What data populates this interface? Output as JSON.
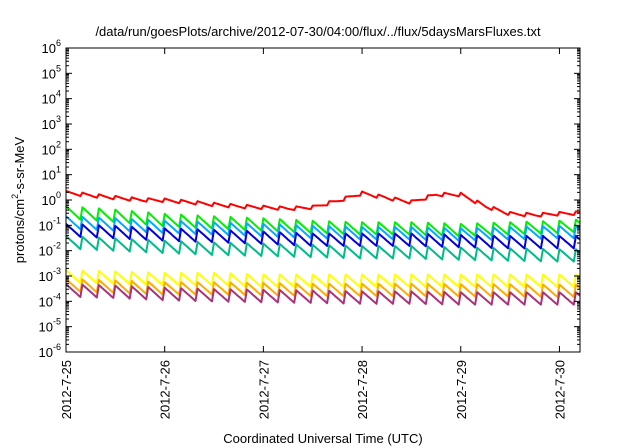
{
  "chart_data": {
    "type": "line",
    "title": "/data/run/goesPlots/archive/2012-07-30/04:00/flux/../flux/5daysMarsFluxes.txt",
    "xlabel": "Coordinated Universal Time (UTC)",
    "ylabel": {
      "base": "protons/cm",
      "sup": "2",
      "rest": "-s-sr-MeV"
    },
    "x_scale": "time",
    "y_scale": "log",
    "xlim": [
      "2012-07-25T00:00",
      "2012-07-30T05:00"
    ],
    "ylim": [
      1e-06,
      1000000.0
    ],
    "x_ticks": [
      {
        "date": "2012-07-25T00:00",
        "label": "2012-7-25"
      },
      {
        "date": "2012-07-26T00:00",
        "label": "2012-7-26"
      },
      {
        "date": "2012-07-27T00:00",
        "label": "2012-7-27"
      },
      {
        "date": "2012-07-28T00:00",
        "label": "2012-7-28"
      },
      {
        "date": "2012-07-29T00:00",
        "label": "2012-7-29"
      },
      {
        "date": "2012-07-30T00:00",
        "label": "2012-7-30"
      }
    ],
    "y_ticks": [
      {
        "value": 1e-06,
        "base": "10",
        "exp": "-6"
      },
      {
        "value": 1e-05,
        "base": "10",
        "exp": "-5"
      },
      {
        "value": 0.0001,
        "base": "10",
        "exp": "-4"
      },
      {
        "value": 0.001,
        "base": "10",
        "exp": "-3"
      },
      {
        "value": 0.01,
        "base": "10",
        "exp": "-2"
      },
      {
        "value": 0.1,
        "base": "10",
        "exp": "-1"
      },
      {
        "value": 1,
        "base": "10",
        "exp": "0"
      },
      {
        "value": 10.0,
        "base": "10",
        "exp": "1"
      },
      {
        "value": 100.0,
        "base": "10",
        "exp": "2"
      },
      {
        "value": 1000.0,
        "base": "10",
        "exp": "3"
      },
      {
        "value": 10000.0,
        "base": "10",
        "exp": "4"
      },
      {
        "value": 100000.0,
        "base": "10",
        "exp": "5"
      },
      {
        "value": 1000000.0,
        "base": "10",
        "exp": "6"
      }
    ],
    "grid": false,
    "legend": "none",
    "series": [
      {
        "color": "#ff0000",
        "x": [
          "2012-07-25T00:00",
          "2012-07-25T06:00",
          "2012-07-25T12:00",
          "2012-07-25T18:00",
          "2012-07-26T00:00",
          "2012-07-26T06:00",
          "2012-07-26T12:00",
          "2012-07-26T18:00",
          "2012-07-27T00:00",
          "2012-07-27T06:00",
          "2012-07-27T12:00",
          "2012-07-27T18:00",
          "2012-07-28T00:00",
          "2012-07-28T06:00",
          "2012-07-28T12:00",
          "2012-07-28T18:00",
          "2012-07-29T00:00",
          "2012-07-29T06:00",
          "2012-07-29T12:00",
          "2012-07-29T18:00",
          "2012-07-30T00:00",
          "2012-07-30T05:00"
        ],
        "y": [
          1.9,
          1.5,
          1.2,
          1.0,
          0.95,
          0.8,
          0.65,
          0.55,
          0.5,
          0.45,
          0.5,
          0.9,
          1.8,
          1.2,
          0.8,
          1.6,
          1.6,
          0.55,
          0.28,
          0.25,
          0.28,
          0.3
        ]
      },
      {
        "color": "#00ee00",
        "x": [
          "2012-07-25T00:00",
          "2012-07-25T12:00",
          "2012-07-26T00:00",
          "2012-07-26T12:00",
          "2012-07-27T00:00",
          "2012-07-27T12:00",
          "2012-07-28T00:00",
          "2012-07-28T12:00",
          "2012-07-29T00:00",
          "2012-07-29T12:00",
          "2012-07-30T00:00",
          "2012-07-30T05:00"
        ],
        "y": [
          0.3,
          0.22,
          0.15,
          0.12,
          0.1,
          0.08,
          0.07,
          0.07,
          0.06,
          0.07,
          0.08,
          0.09
        ]
      },
      {
        "color": "#00aaff",
        "x": [
          "2012-07-25T00:00",
          "2012-07-25T12:00",
          "2012-07-26T00:00",
          "2012-07-26T12:00",
          "2012-07-27T00:00",
          "2012-07-27T12:00",
          "2012-07-28T00:00",
          "2012-07-28T12:00",
          "2012-07-29T00:00",
          "2012-07-29T12:00",
          "2012-07-30T00:00",
          "2012-07-30T05:00"
        ],
        "y": [
          0.12,
          0.1,
          0.08,
          0.07,
          0.06,
          0.05,
          0.045,
          0.045,
          0.04,
          0.045,
          0.05,
          0.05
        ]
      },
      {
        "color": "#0000dd",
        "x": [
          "2012-07-25T00:00",
          "2012-07-25T12:00",
          "2012-07-26T00:00",
          "2012-07-26T12:00",
          "2012-07-27T00:00",
          "2012-07-27T12:00",
          "2012-07-28T00:00",
          "2012-07-28T12:00",
          "2012-07-29T00:00",
          "2012-07-29T12:00",
          "2012-07-30T00:00",
          "2012-07-30T05:00"
        ],
        "y": [
          0.06,
          0.05,
          0.04,
          0.035,
          0.03,
          0.025,
          0.025,
          0.025,
          0.022,
          0.02,
          0.02,
          0.02
        ]
      },
      {
        "color": "#00bb88",
        "x": [
          "2012-07-25T00:00",
          "2012-07-25T12:00",
          "2012-07-26T00:00",
          "2012-07-26T12:00",
          "2012-07-27T00:00",
          "2012-07-27T12:00",
          "2012-07-28T00:00",
          "2012-07-28T12:00",
          "2012-07-29T00:00",
          "2012-07-29T12:00",
          "2012-07-30T00:00",
          "2012-07-30T05:00"
        ],
        "y": [
          0.02,
          0.016,
          0.013,
          0.011,
          0.01,
          0.009,
          0.008,
          0.008,
          0.007,
          0.0065,
          0.006,
          0.006
        ]
      },
      {
        "color": "#ffff00",
        "x": [
          "2012-07-25T00:00",
          "2012-07-25T12:00",
          "2012-07-26T00:00",
          "2012-07-26T12:00",
          "2012-07-27T00:00",
          "2012-07-27T12:00",
          "2012-07-28T00:00",
          "2012-07-28T12:00",
          "2012-07-29T00:00",
          "2012-07-29T12:00",
          "2012-07-30T00:00",
          "2012-07-30T05:00"
        ],
        "y": [
          0.0009,
          0.0008,
          0.0007,
          0.0007,
          0.0006,
          0.0006,
          0.0006,
          0.0006,
          0.0006,
          0.0006,
          0.0006,
          0.0006
        ]
      },
      {
        "color": "#ffaa00",
        "x": [
          "2012-07-25T00:00",
          "2012-07-25T12:00",
          "2012-07-26T00:00",
          "2012-07-26T12:00",
          "2012-07-27T00:00",
          "2012-07-27T12:00",
          "2012-07-28T00:00",
          "2012-07-28T12:00",
          "2012-07-29T00:00",
          "2012-07-29T12:00",
          "2012-07-30T00:00",
          "2012-07-30T05:00"
        ],
        "y": [
          0.0004,
          0.00035,
          0.0003,
          0.0003,
          0.00028,
          0.00026,
          0.00026,
          0.00026,
          0.00025,
          0.00025,
          0.00024,
          0.00024
        ]
      },
      {
        "color": "#aa3377",
        "x": [
          "2012-07-25T00:00",
          "2012-07-25T12:00",
          "2012-07-26T00:00",
          "2012-07-26T12:00",
          "2012-07-27T00:00",
          "2012-07-27T12:00",
          "2012-07-28T00:00",
          "2012-07-28T12:00",
          "2012-07-29T00:00",
          "2012-07-29T12:00",
          "2012-07-30T00:00",
          "2012-07-30T05:00"
        ],
        "y": [
          0.00025,
          0.00022,
          0.00018,
          0.00016,
          0.00015,
          0.00014,
          0.00013,
          0.00013,
          0.00012,
          0.00012,
          0.00012,
          0.00012
        ]
      }
    ]
  }
}
